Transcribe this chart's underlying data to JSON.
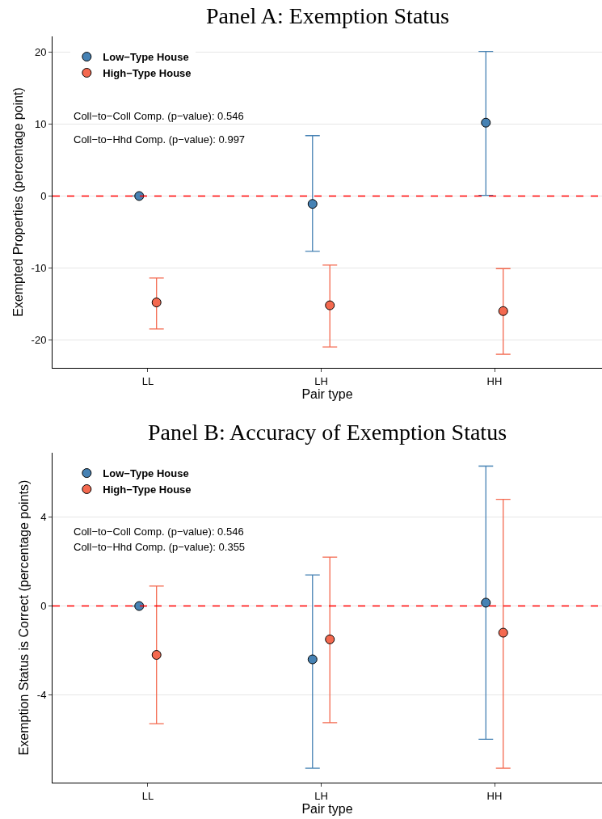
{
  "chart_data": [
    {
      "type": "scatter",
      "title": "Panel A: Exemption Status",
      "xlabel": "Pair type",
      "ylabel": "Exempted Properties (percentage point)",
      "categories": [
        "LL",
        "LH",
        "HH"
      ],
      "series": [
        {
          "name": "Low−Type House",
          "color": "#4682b4",
          "values": [
            0,
            -1.1,
            10.2
          ],
          "errors": [
            null,
            [
              -7.7,
              8.4
            ],
            [
              0.1,
              20.1
            ]
          ]
        },
        {
          "name": "High−Type House",
          "color": "#f4694f",
          "values": [
            -14.8,
            -15.2,
            -16.0
          ],
          "errors": [
            [
              -18.5,
              -11.4
            ],
            [
              -21.0,
              -9.6
            ],
            [
              -22.0,
              -10.1
            ]
          ]
        }
      ],
      "ylim": [
        -23.9,
        22.2
      ],
      "yticks": [
        -20,
        -10,
        0,
        10,
        20
      ],
      "grid": "y",
      "legend": "top left",
      "marker": "circle",
      "ref_lines": [
        {
          "axis": "y",
          "value": 0,
          "color": "#ff0000",
          "line_style": "dashed"
        }
      ],
      "annotations": [
        "Coll−to−Coll Comp. (p−value): 0.546",
        "Coll−to−Hhd Comp. (p−value): 0.997"
      ]
    },
    {
      "type": "scatter",
      "title": "Panel B: Accuracy of Exemption Status",
      "xlabel": "Pair type",
      "ylabel": "Exemption Status is Correct (percentage points)",
      "categories": [
        "LL",
        "LH",
        "HH"
      ],
      "series": [
        {
          "name": "Low−Type House",
          "color": "#4682b4",
          "values": [
            0,
            -2.4,
            0.15
          ],
          "errors": [
            null,
            [
              -7.3,
              1.4
            ],
            [
              -6.0,
              6.3
            ]
          ]
        },
        {
          "name": "High−Type House",
          "color": "#f4694f",
          "values": [
            -2.2,
            -1.5,
            -1.2
          ],
          "errors": [
            [
              -5.3,
              0.9
            ],
            [
              -5.25,
              2.2
            ],
            [
              -7.3,
              4.8
            ]
          ]
        }
      ],
      "ylim": [
        -7.95,
        6.9
      ],
      "yticks": [
        -4,
        0,
        4
      ],
      "grid": "y",
      "legend": "top left",
      "marker": "circle",
      "ref_lines": [
        {
          "axis": "y",
          "value": 0,
          "color": "#ff0000",
          "line_style": "dashed"
        }
      ],
      "annotations": [
        "Coll−to−Coll Comp. (p−value): 0.546",
        "Coll−to−Hhd Comp. (p−value): 0.355"
      ]
    }
  ]
}
